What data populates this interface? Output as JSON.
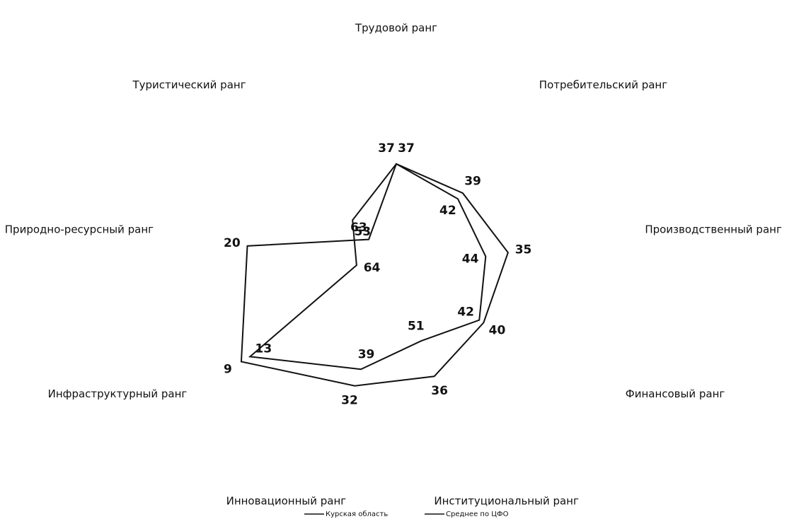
{
  "chart_data": {
    "type": "radar",
    "categories": [
      "Трудовой ранг",
      "Потребительский ранг",
      "Производственный ранг",
      "Финансовый ранг",
      "Институциональный ранг",
      "Инновационный ранг",
      "Инфраструктурный ранг",
      "Природно-ресурсный ранг",
      "Туристический ранг"
    ],
    "rlim": [
      80,
      0
    ],
    "series": [
      {
        "name": "Курская область",
        "color": "#111111",
        "values": [
          37,
          42,
          44,
          42,
          51,
          39,
          13,
          64,
          53
        ]
      },
      {
        "name": "Среднее по ЦФО",
        "color": "#111111",
        "values": [
          37,
          39,
          35,
          40,
          36,
          32,
          9,
          20,
          63
        ]
      }
    ],
    "legend": "bottom"
  }
}
